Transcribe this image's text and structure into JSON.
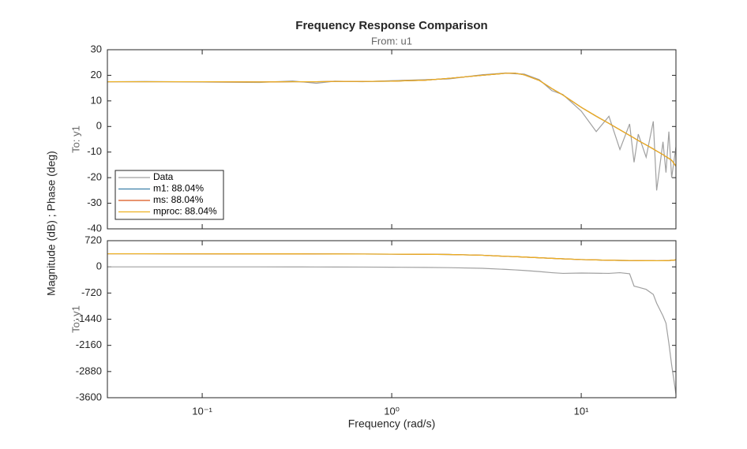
{
  "title": "Frequency Response Comparison",
  "subtitle": "From: u1",
  "ylabel": "Magnitude (dB) ; Phase (deg)",
  "xlabel": "Frequency  (rad/s)",
  "chart_data": [
    {
      "type": "line",
      "ylabel": "To: y1",
      "xscale": "log",
      "legend": "lower left",
      "x": [
        0.0316,
        0.05,
        0.1,
        0.2,
        0.3,
        0.4,
        0.5,
        0.7,
        1,
        1.5,
        2,
        3,
        4,
        4.5,
        5,
        6,
        7,
        8,
        10,
        12,
        14,
        16,
        18,
        19,
        20,
        22,
        24,
        25,
        27,
        28,
        29,
        30,
        31.6
      ],
      "xlim": [
        0.0316,
        31.6
      ],
      "xticks": [
        {
          "value": 0.1,
          "label": "10⁻¹"
        },
        {
          "value": 1,
          "label": "10⁰"
        },
        {
          "value": 10,
          "label": "10¹"
        }
      ],
      "ylim": [
        -40,
        30
      ],
      "yticks": [
        -40,
        -30,
        -20,
        -10,
        0,
        10,
        20,
        30
      ],
      "series": [
        {
          "name": "Data",
          "color": "#a0a0a0",
          "values": [
            17.5,
            17.6,
            17.4,
            17.2,
            17.8,
            16.9,
            17.7,
            17.5,
            17.9,
            18.3,
            18.6,
            20.2,
            20.9,
            20.6,
            20.5,
            18.3,
            14,
            12.5,
            6,
            -2,
            4,
            -9,
            1,
            -14,
            -3,
            -12,
            2,
            -25,
            -6,
            -18,
            -2,
            -20,
            -8
          ]
        },
        {
          "name": "m1: 88.04%",
          "color": "#3c7fa8",
          "values": [
            17.5,
            17.5,
            17.5,
            17.4,
            17.5,
            17.5,
            17.6,
            17.6,
            17.7,
            18.1,
            18.8,
            20,
            20.8,
            20.8,
            20.2,
            18,
            14.8,
            12.3,
            7.5,
            4,
            1.2,
            -1.3,
            -3.5,
            -4.5,
            -5.5,
            -7.2,
            -8.8,
            -9.6,
            -11,
            -11.8,
            -12.5,
            -13.2,
            -15.5
          ]
        },
        {
          "name": "ms: 88.04%",
          "color": "#d95319",
          "values": [
            17.5,
            17.5,
            17.5,
            17.4,
            17.5,
            17.5,
            17.6,
            17.6,
            17.7,
            18.1,
            18.8,
            20,
            20.8,
            20.8,
            20.2,
            18,
            14.8,
            12.3,
            7.5,
            4,
            1.2,
            -1.3,
            -3.5,
            -4.5,
            -5.5,
            -7.2,
            -8.8,
            -9.6,
            -11,
            -11.8,
            -12.5,
            -13.2,
            -15.5
          ]
        },
        {
          "name": "mproc: 88.04%",
          "color": "#edb120",
          "values": [
            17.5,
            17.5,
            17.5,
            17.4,
            17.5,
            17.5,
            17.6,
            17.6,
            17.7,
            18.1,
            18.8,
            20,
            20.8,
            20.8,
            20.2,
            18,
            14.8,
            12.3,
            7.5,
            4,
            1.2,
            -1.3,
            -3.5,
            -4.5,
            -5.5,
            -7.2,
            -8.8,
            -9.6,
            -11,
            -11.8,
            -12.5,
            -13.2,
            -15.5
          ]
        }
      ]
    },
    {
      "type": "line",
      "ylabel": "To: y1",
      "xscale": "log",
      "x": [
        0.0316,
        0.05,
        0.1,
        0.2,
        0.3,
        0.4,
        0.5,
        0.7,
        1,
        1.5,
        2,
        3,
        4,
        4.5,
        5,
        6,
        7,
        8,
        10,
        12,
        14,
        16,
        18,
        19,
        20,
        22,
        24,
        25,
        27,
        28,
        29,
        30,
        31.6
      ],
      "xlim": [
        0.0316,
        31.6
      ],
      "xticks": [
        {
          "value": 0.1,
          "label": "10⁻¹"
        },
        {
          "value": 1,
          "label": "10⁰"
        },
        {
          "value": 10,
          "label": "10¹"
        }
      ],
      "ylim": [
        -3600,
        720
      ],
      "yticks": [
        -3600,
        -2880,
        -2160,
        -1440,
        -720,
        0,
        720
      ],
      "series": [
        {
          "color": "#a0a0a0",
          "values": [
            0,
            0,
            0,
            -1,
            -2,
            -3,
            -4,
            -6,
            -10,
            -15,
            -22,
            -40,
            -70,
            -85,
            -100,
            -130,
            -160,
            -180,
            -170,
            -175,
            -180,
            -160,
            -190,
            -530,
            -560,
            -620,
            -760,
            -1000,
            -1350,
            -1550,
            -2100,
            -2700,
            -3500
          ]
        },
        {
          "color": "#3c7fa8",
          "values": [
            360,
            360,
            358,
            357,
            356,
            355,
            354,
            352,
            350,
            345,
            340,
            320,
            290,
            280,
            270,
            250,
            235,
            220,
            200,
            190,
            182,
            178,
            175,
            173,
            172,
            170,
            169,
            168,
            170,
            172,
            175,
            180,
            190
          ]
        },
        {
          "color": "#d95319",
          "values": [
            360,
            360,
            358,
            357,
            356,
            355,
            354,
            352,
            350,
            345,
            340,
            320,
            290,
            280,
            270,
            250,
            235,
            220,
            200,
            190,
            182,
            178,
            175,
            173,
            172,
            170,
            169,
            168,
            170,
            172,
            175,
            180,
            190
          ]
        },
        {
          "color": "#edb120",
          "values": [
            360,
            360,
            358,
            357,
            356,
            355,
            354,
            352,
            350,
            345,
            340,
            320,
            290,
            280,
            270,
            250,
            235,
            220,
            200,
            190,
            182,
            178,
            175,
            173,
            172,
            170,
            169,
            168,
            170,
            172,
            175,
            180,
            190
          ]
        }
      ]
    }
  ]
}
